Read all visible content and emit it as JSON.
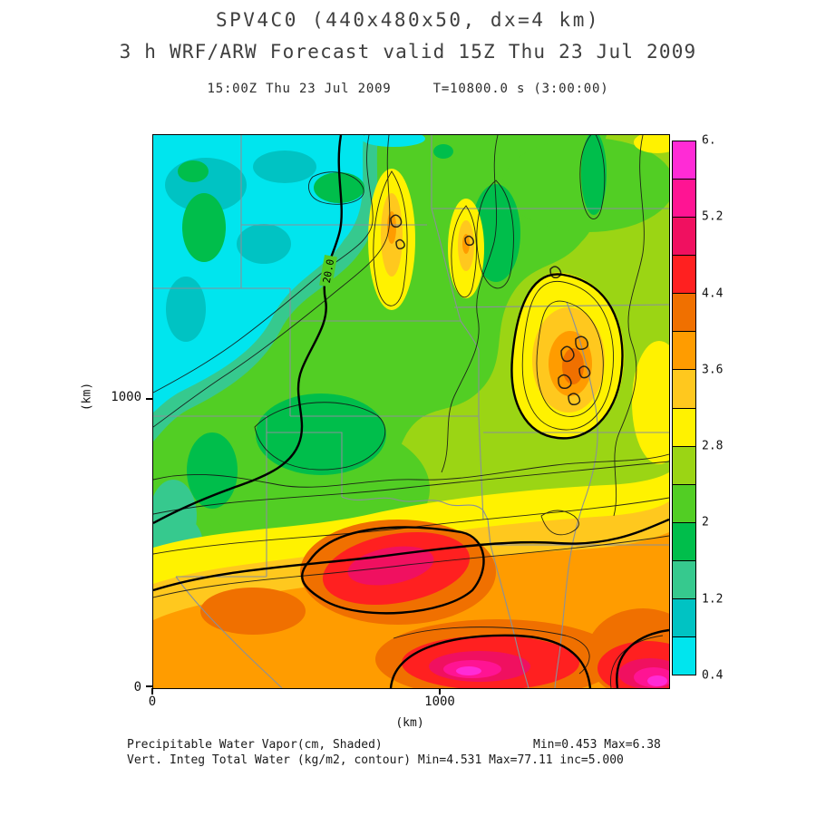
{
  "chart_data": {
    "type": "heatmap",
    "title": "SPV4C0 (440x480x50, dx=4 km)",
    "subtitle": "3 h WRF/ARW Forecast valid 15Z Thu 23 Jul 2009",
    "time_line": "15:00Z Thu 23 Jul 2009     T=10800.0 s (3:00:00)",
    "xlabel": "(km)",
    "ylabel": "(km)",
    "x_ticks": [
      "0",
      "1000"
    ],
    "y_ticks": [
      "0",
      "1000"
    ],
    "x_range_km": [
      0,
      1760
    ],
    "y_range_km": [
      0,
      1920
    ],
    "grid": false,
    "legend_position": "right-colorbar",
    "shaded_field": {
      "name": "Precipitable Water Vapor",
      "units": "cm",
      "min": 0.453,
      "max": 6.38
    },
    "contour_field": {
      "name": "Vert. Integ Total Water",
      "units": "kg/m2",
      "min": 4.531,
      "max": 77.11,
      "interval": 5.0,
      "labeled_contour": "20.0"
    },
    "colorbar": {
      "tick_labels": [
        "6.",
        "5.2",
        "4.4",
        "3.6",
        "2.8",
        "2",
        "1.2",
        "0.4"
      ],
      "levels": [
        0.4,
        0.8,
        1.2,
        1.6,
        2.0,
        2.4,
        2.8,
        3.2,
        3.6,
        4.0,
        4.4,
        4.8,
        5.2,
        5.6,
        6.0
      ],
      "colors_bottom_to_top": [
        "#00E5EE",
        "#00C3C3",
        "#36C98E",
        "#00BE4B",
        "#52CE24",
        "#9BD514",
        "#FFF200",
        "#FFC81E",
        "#FF9C00",
        "#F07000",
        "#FF2020",
        "#F01060",
        "#FF1493",
        "#FF2BD6"
      ]
    },
    "captions": {
      "line1_left": "Precipitable Water Vapor(cm, Shaded)",
      "line1_right": "Min=0.453 Max=6.38",
      "line2": "Vert. Integ Total Water (kg/m2, contour) Min=4.531 Max=77.11 inc=5.000"
    }
  }
}
